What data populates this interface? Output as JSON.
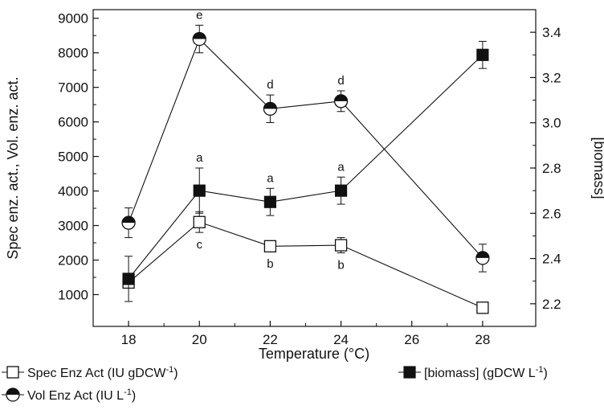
{
  "chart_data": {
    "type": "line",
    "xlabel": "Temperature (°C)",
    "ylabel_left": "Spec enz. act., Vol. enz. act.",
    "ylabel_right": "[biomass]",
    "x_ticks": [
      18,
      20,
      22,
      24,
      26,
      28
    ],
    "xlim": [
      17,
      29.5
    ],
    "y_left_ticks": [
      1000,
      2000,
      3000,
      4000,
      5000,
      6000,
      7000,
      8000,
      9000
    ],
    "y_left_lim": [
      80,
      9250
    ],
    "y_right_ticks": [
      "2.2",
      "2.4",
      "2.6",
      "2.8",
      "3.0",
      "3.2",
      "3.4"
    ],
    "y_right_lim": [
      2.1,
      3.5
    ],
    "grid": false,
    "legend_position": "bottom",
    "series": [
      {
        "name": "Spec Enz Act (IU gDCW",
        "name_sup": "-1",
        "name_suffix": ")",
        "marker": "open-square",
        "axis": "left",
        "x": [
          18,
          20,
          22,
          24,
          28
        ],
        "y": [
          1350,
          3100,
          2400,
          2430,
          620
        ],
        "err": [
          120,
          300,
          150,
          220,
          100
        ],
        "letters": [
          "",
          "c",
          "b",
          "b",
          ""
        ],
        "letter_pos": "below"
      },
      {
        "name": "Vol Enz Act (IU L",
        "name_sup": "-1",
        "name_suffix": ")",
        "marker": "half-circle",
        "axis": "left",
        "x": [
          18,
          20,
          22,
          24,
          28
        ],
        "y": [
          3080,
          8400,
          6380,
          6600,
          2060
        ],
        "err": [
          430,
          400,
          400,
          300,
          400
        ],
        "letters": [
          "",
          "e",
          "d",
          "d",
          ""
        ],
        "letter_pos": "above"
      },
      {
        "name": "[biomass] (gDCW L",
        "name_sup": "-1",
        "name_suffix": ")",
        "marker": "filled-square",
        "axis": "right",
        "x": [
          18,
          20,
          22,
          24,
          28
        ],
        "y": [
          2.31,
          2.7,
          2.65,
          2.7,
          3.3
        ],
        "err": [
          0.1,
          0.1,
          0.06,
          0.06,
          0.06
        ],
        "letters": [
          "",
          "a",
          "a",
          "a",
          ""
        ],
        "letter_pos": "above"
      }
    ]
  }
}
